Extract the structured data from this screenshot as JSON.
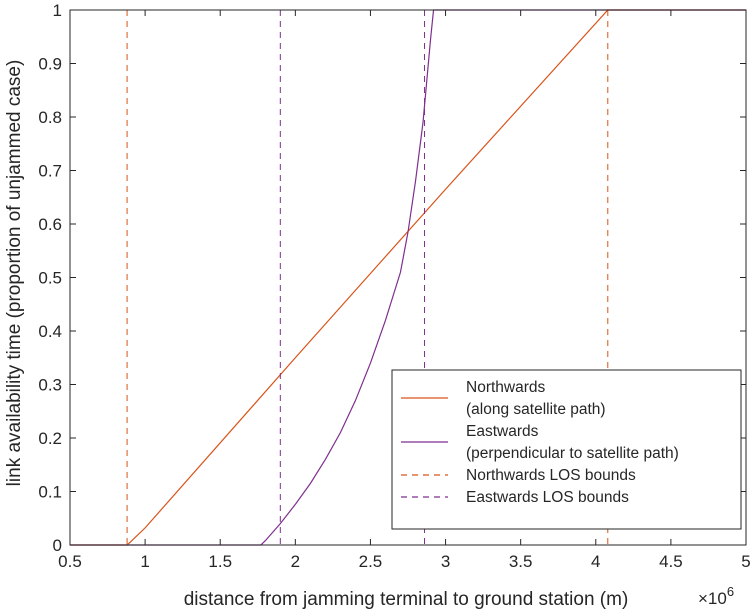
{
  "chart_data": {
    "type": "line",
    "xlabel": "distance from jamming terminal to ground station (m)",
    "ylabel": "link availability time (proportion of unjammed case)",
    "x_exponent": {
      "base": "×10",
      "power": "6"
    },
    "xlim": [
      0.5,
      5
    ],
    "ylim": [
      0,
      1
    ],
    "xticks": [
      0.5,
      1,
      1.5,
      2,
      2.5,
      3,
      3.5,
      4,
      4.5,
      5
    ],
    "xtick_labels": [
      "0.5",
      "1",
      "1.5",
      "2",
      "2.5",
      "3",
      "3.5",
      "4",
      "4.5",
      "5"
    ],
    "yticks": [
      0,
      0.1,
      0.2,
      0.3,
      0.4,
      0.5,
      0.6,
      0.7,
      0.8,
      0.9,
      1
    ],
    "ytick_labels": [
      "0",
      "0.1",
      "0.2",
      "0.3",
      "0.4",
      "0.5",
      "0.6",
      "0.7",
      "0.8",
      "0.9",
      "1"
    ],
    "grid": false,
    "legend_position": "bottom-right",
    "series": [
      {
        "name": "Northwards\n(along satellite path)",
        "style": "solid",
        "color": "#D95319",
        "x": [
          0.5,
          0.88,
          0.9,
          1.0,
          2.0,
          3.0,
          4.08,
          5.0
        ],
        "y": [
          0,
          0,
          0.005,
          0.032,
          0.35,
          0.665,
          1.0,
          1.0
        ]
      },
      {
        "name": "Eastwards\n(perpendicular to satellite path)",
        "style": "solid",
        "color": "#7E2F8E",
        "x": [
          0.5,
          1.77,
          1.8,
          1.9,
          2.0,
          2.1,
          2.2,
          2.3,
          2.4,
          2.5,
          2.6,
          2.7,
          2.75,
          2.8,
          2.85,
          2.9,
          2.92,
          5.0
        ],
        "y": [
          0,
          0,
          0.008,
          0.04,
          0.076,
          0.115,
          0.16,
          0.21,
          0.27,
          0.34,
          0.42,
          0.51,
          0.585,
          0.68,
          0.79,
          0.945,
          1.0,
          1.0
        ]
      },
      {
        "name": "Northwards LOS bounds",
        "style": "dashed",
        "color": "#D95319",
        "vlines": [
          0.88,
          4.08
        ]
      },
      {
        "name": "Eastwards LOS bounds",
        "style": "dashed",
        "color": "#7E2F8E",
        "vlines": [
          1.9,
          2.86
        ]
      }
    ]
  }
}
